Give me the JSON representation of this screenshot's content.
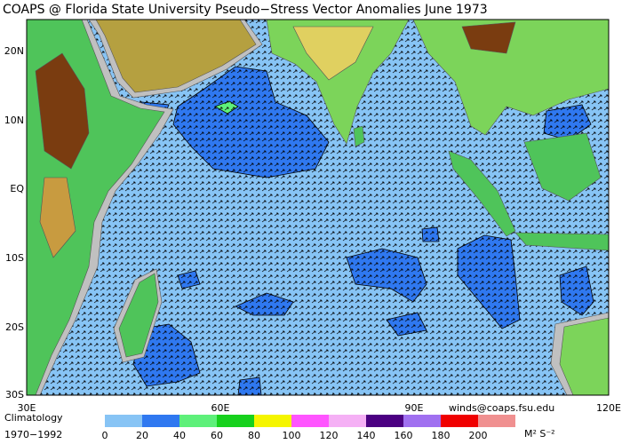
{
  "map": {
    "title": "COAPS @ Florida State University Pseudo−Stress Vector Anomalies  June 1973",
    "lat_labels": [
      "20N",
      "10N",
      "EQ",
      "10S",
      "20S",
      "30S"
    ],
    "lon_labels": [
      "30E",
      "60E",
      "90E",
      "120E"
    ],
    "credit": "winds@coaps.fsu.edu",
    "climatology": [
      "Climatology",
      "1970−1992"
    ],
    "legend": {
      "labels": [
        "0",
        "20",
        "40",
        "60",
        "80",
        "100",
        "120",
        "140",
        "160",
        "180",
        "200"
      ],
      "colors": [
        "#87c4f5",
        "#2f78f0",
        "#5ef07a",
        "#17d11d",
        "#f5f500",
        "#ff55ff",
        "#f5b0f5",
        "#4b0082",
        "#a070f0",
        "#f00000",
        "#f09090"
      ],
      "unit": "M² S⁻²"
    }
  }
}
